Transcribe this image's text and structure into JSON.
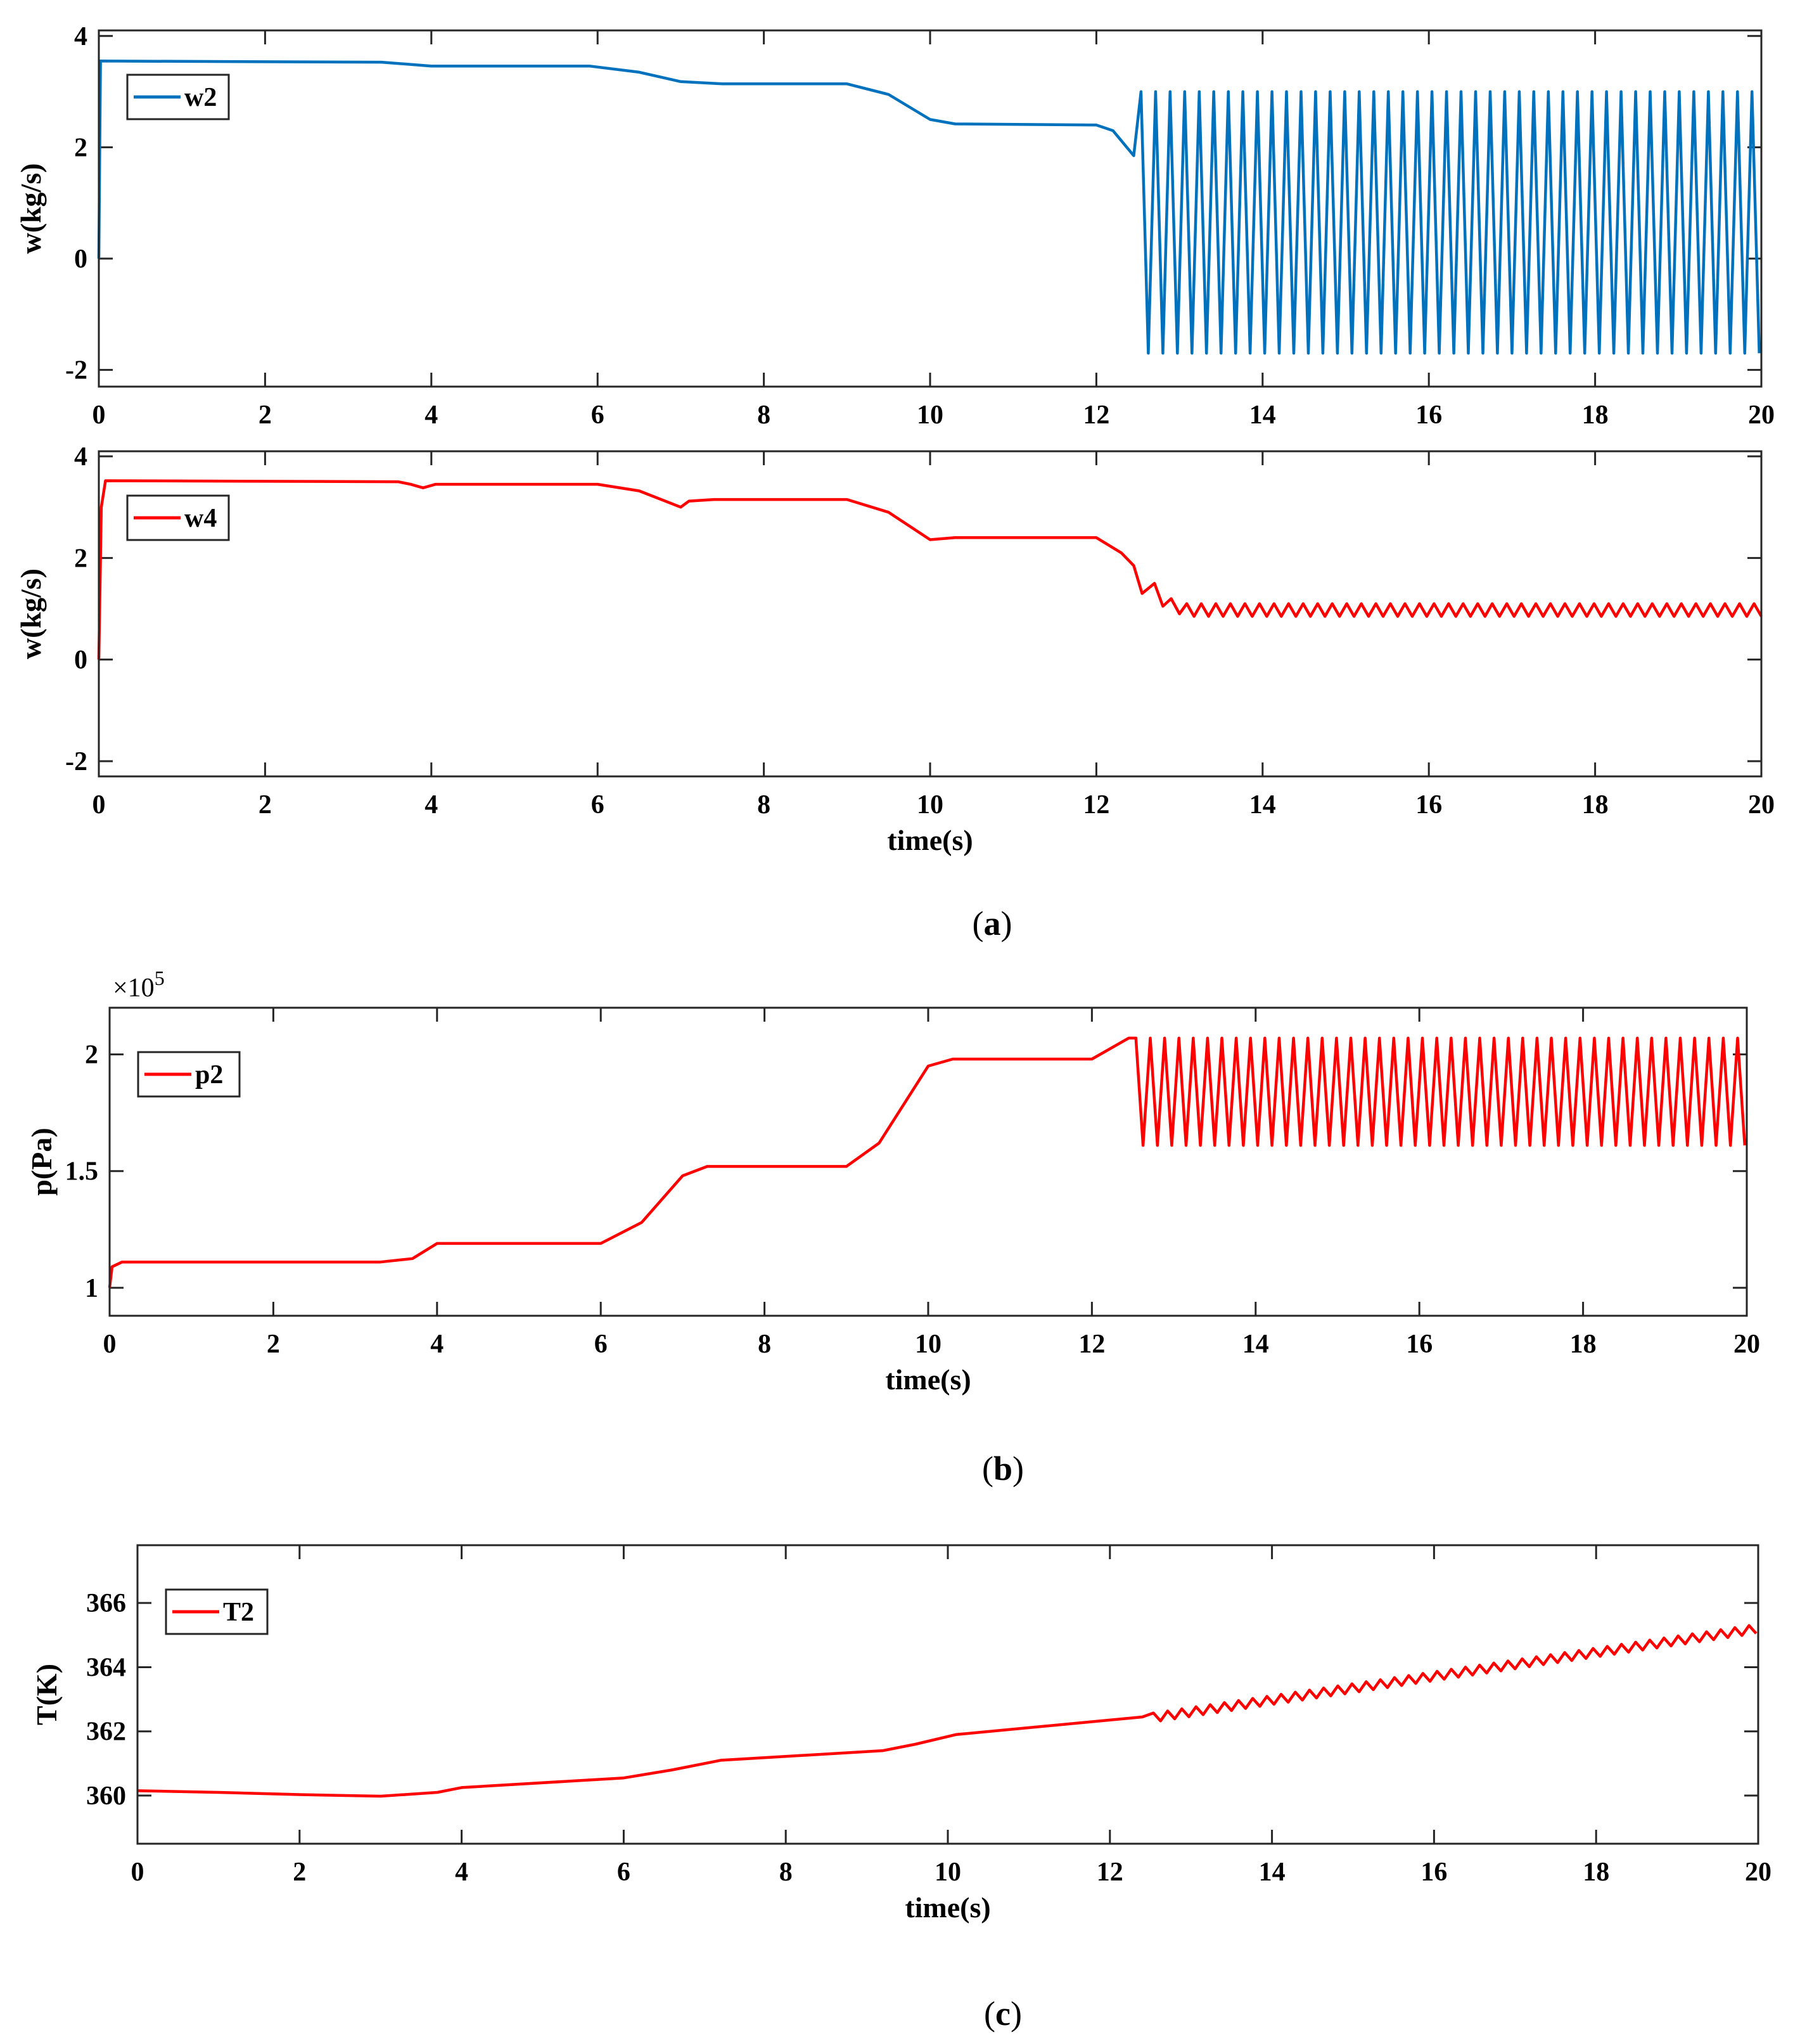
{
  "figure": {
    "captions": [
      {
        "open": "(",
        "letter": "a",
        "close": ")"
      },
      {
        "open": "(",
        "letter": "b",
        "close": ")"
      },
      {
        "open": "(",
        "letter": "c",
        "close": ")"
      }
    ]
  },
  "chart_data": [
    {
      "id": "w2",
      "type": "line",
      "xlabel": "",
      "ylabel": "w(kg/s)",
      "xlim": [
        0,
        20
      ],
      "ylim": [
        -2.3,
        4.1
      ],
      "xticks": [
        0,
        2,
        4,
        6,
        8,
        10,
        12,
        14,
        16,
        18,
        20
      ],
      "xtick_labels": [
        "0",
        "2",
        "4",
        "6",
        "8",
        "10",
        "12",
        "14",
        "16",
        "18",
        "20"
      ],
      "yticks": [
        -2,
        0,
        2,
        4
      ],
      "ytick_labels": [
        "-2",
        "0",
        "2",
        "4"
      ],
      "legend": {
        "label": "w2",
        "location": "upper-left"
      },
      "series": [
        {
          "name": "w2",
          "color": "#0072BD",
          "points": [
            [
              0,
              0
            ],
            [
              0.02,
              3.55
            ],
            [
              3.4,
              3.53
            ],
            [
              4.0,
              3.46
            ],
            [
              5.9,
              3.46
            ],
            [
              6.5,
              3.35
            ],
            [
              7.0,
              3.18
            ],
            [
              7.5,
              3.14
            ],
            [
              9.0,
              3.14
            ],
            [
              9.5,
              2.95
            ],
            [
              10.0,
              2.5
            ],
            [
              10.3,
              2.42
            ],
            [
              12.0,
              2.4
            ],
            [
              12.2,
              2.3
            ],
            [
              12.45,
              1.85
            ]
          ],
          "oscillation": {
            "start": 12.45,
            "end": 20,
            "period": 0.175,
            "min": -1.7,
            "max": 3.0
          }
        }
      ]
    },
    {
      "id": "w4",
      "type": "line",
      "xlabel": "time(s)",
      "ylabel": "w(kg/s)",
      "xlim": [
        0,
        20
      ],
      "ylim": [
        -2.3,
        4.1
      ],
      "xticks": [
        0,
        2,
        4,
        6,
        8,
        10,
        12,
        14,
        16,
        18,
        20
      ],
      "xtick_labels": [
        "0",
        "2",
        "4",
        "6",
        "8",
        "10",
        "12",
        "14",
        "16",
        "18",
        "20"
      ],
      "yticks": [
        -2,
        0,
        2,
        4
      ],
      "ytick_labels": [
        "-2",
        "0",
        "2",
        "4"
      ],
      "legend": {
        "label": "w4",
        "location": "upper-left"
      },
      "series": [
        {
          "name": "w4",
          "color": "#FF0000",
          "points": [
            [
              0,
              0
            ],
            [
              0.03,
              3.0
            ],
            [
              0.08,
              3.52
            ],
            [
              3.6,
              3.5
            ],
            [
              3.75,
              3.45
            ],
            [
              3.9,
              3.38
            ],
            [
              4.05,
              3.45
            ],
            [
              6.0,
              3.45
            ],
            [
              6.5,
              3.32
            ],
            [
              7.0,
              3.0
            ],
            [
              7.1,
              3.12
            ],
            [
              7.4,
              3.15
            ],
            [
              9.0,
              3.15
            ],
            [
              9.5,
              2.9
            ],
            [
              10.0,
              2.36
            ],
            [
              10.3,
              2.4
            ],
            [
              12.0,
              2.4
            ],
            [
              12.3,
              2.1
            ],
            [
              12.45,
              1.85
            ],
            [
              12.55,
              1.3
            ],
            [
              12.7,
              1.5
            ],
            [
              12.8,
              1.05
            ],
            [
              12.9,
              1.2
            ],
            [
              13.0,
              0.9
            ]
          ],
          "oscillation": {
            "start": 13.0,
            "end": 20,
            "period": 0.175,
            "min": 0.85,
            "max": 1.1
          }
        }
      ]
    },
    {
      "id": "p2",
      "type": "line",
      "xlabel": "time(s)",
      "ylabel": "p(Pa)",
      "multiplier": {
        "prefix": "×10",
        "exponent": "5"
      },
      "xlim": [
        0,
        20
      ],
      "ylim": [
        0.88,
        2.2
      ],
      "xticks": [
        0,
        2,
        4,
        6,
        8,
        10,
        12,
        14,
        16,
        18,
        20
      ],
      "xtick_labels": [
        "0",
        "2",
        "4",
        "6",
        "8",
        "10",
        "12",
        "14",
        "16",
        "18",
        "20"
      ],
      "yticks": [
        1,
        1.5,
        2
      ],
      "ytick_labels": [
        "1",
        "1.5",
        "2"
      ],
      "legend": {
        "label": "p2",
        "location": "upper-left"
      },
      "series": [
        {
          "name": "p2",
          "color": "#FF0000",
          "points": [
            [
              0,
              1.0
            ],
            [
              0.03,
              1.09
            ],
            [
              0.15,
              1.11
            ],
            [
              3.3,
              1.11
            ],
            [
              3.7,
              1.125
            ],
            [
              4.0,
              1.19
            ],
            [
              6.0,
              1.19
            ],
            [
              6.5,
              1.28
            ],
            [
              7.0,
              1.48
            ],
            [
              7.3,
              1.52
            ],
            [
              9.0,
              1.52
            ],
            [
              9.4,
              1.62
            ],
            [
              10.0,
              1.95
            ],
            [
              10.3,
              1.98
            ],
            [
              12.0,
              1.98
            ],
            [
              12.45,
              2.07
            ]
          ],
          "oscillation": {
            "start": 12.45,
            "end": 20,
            "period": 0.175,
            "min": 1.61,
            "max": 2.07
          }
        }
      ]
    },
    {
      "id": "T2",
      "type": "line",
      "xlabel": "time(s)",
      "ylabel": "T(K)",
      "xlim": [
        0,
        20
      ],
      "ylim": [
        358.5,
        367.8
      ],
      "xticks": [
        0,
        2,
        4,
        6,
        8,
        10,
        12,
        14,
        16,
        18,
        20
      ],
      "xtick_labels": [
        "0",
        "2",
        "4",
        "6",
        "8",
        "10",
        "12",
        "14",
        "16",
        "18",
        "20"
      ],
      "yticks": [
        360,
        362,
        364,
        366
      ],
      "ytick_labels": [
        "360",
        "362",
        "364",
        "366"
      ],
      "legend": {
        "label": "T2",
        "location": "upper-left"
      },
      "series": [
        {
          "name": "T2",
          "color": "#FF0000",
          "points": [
            [
              0,
              360.15
            ],
            [
              1.0,
              360.1
            ],
            [
              2.0,
              360.03
            ],
            [
              3.0,
              359.98
            ],
            [
              3.7,
              360.1
            ],
            [
              4.0,
              360.25
            ],
            [
              6.0,
              360.55
            ],
            [
              6.6,
              360.8
            ],
            [
              7.2,
              361.1
            ],
            [
              9.2,
              361.4
            ],
            [
              9.6,
              361.6
            ],
            [
              10.1,
              361.9
            ],
            [
              12.4,
              362.45
            ]
          ],
          "oscillation": {
            "start": 12.45,
            "end": 20,
            "period": 0.175,
            "trend_start": 362.4,
            "trend_end": 365.2,
            "amplitude": 0.14
          }
        }
      ]
    }
  ]
}
